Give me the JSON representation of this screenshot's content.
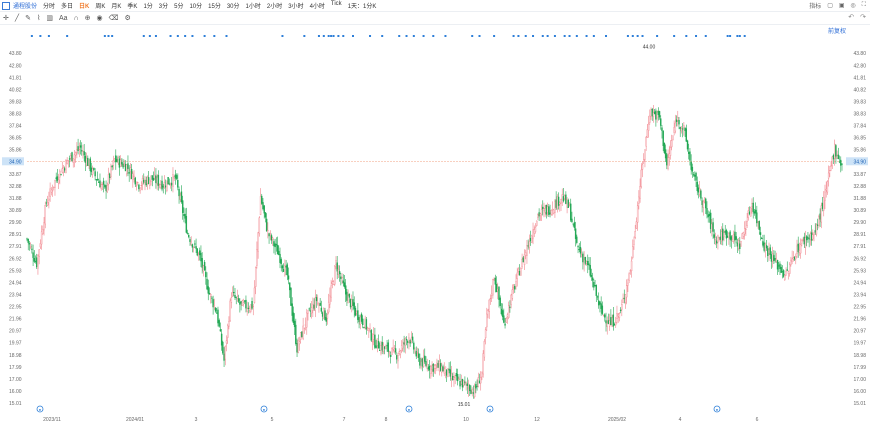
{
  "header": {
    "stock_name": "通程股份",
    "timeframes": [
      "分时",
      "多日",
      "日K",
      "周K",
      "月K",
      "季K",
      "1分",
      "3分",
      "5分",
      "10分",
      "15分",
      "30分",
      "1小时",
      "2小时",
      "3小时",
      "4小时",
      "Tick",
      "1天：1分K"
    ],
    "active_timeframe": "日K",
    "right_label": "指标"
  },
  "fq_label": "前复权",
  "icons": [
    "crosshair-icon",
    "trendline-icon",
    "pen-icon",
    "shape-icon",
    "measure-icon",
    "text-icon",
    "magnet-icon",
    "lock-icon",
    "eye-icon",
    "trash-icon",
    "settings-icon"
  ],
  "chart_data": {
    "type": "candlestick",
    "ylim": [
      15.01,
      44.55
    ],
    "y_ticks": [
      15.01,
      16.0,
      17.0,
      17.99,
      18.98,
      19.97,
      20.97,
      21.96,
      22.95,
      23.94,
      24.94,
      25.93,
      26.92,
      27.91,
      28.91,
      29.9,
      30.89,
      31.88,
      32.88,
      33.87,
      34.9,
      35.86,
      36.85,
      37.84,
      38.83,
      39.83,
      40.82,
      41.81,
      42.8,
      43.8
    ],
    "x_ticks": [
      "2023/11",
      "2024/01",
      "3",
      "5",
      "7",
      "8",
      "10",
      "12",
      "2025/02",
      "4",
      "6"
    ],
    "last_price": 34.9,
    "max_label": 44.0,
    "min_label": 15.01,
    "close_points": [
      [
        0,
        28.5
      ],
      [
        8,
        26.5
      ],
      [
        16,
        31.5
      ],
      [
        24,
        33.5
      ],
      [
        34,
        35.0
      ],
      [
        44,
        36.0
      ],
      [
        54,
        34.0
      ],
      [
        64,
        32.5
      ],
      [
        72,
        35.0
      ],
      [
        82,
        34.5
      ],
      [
        92,
        33.0
      ],
      [
        102,
        33.5
      ],
      [
        112,
        33.0
      ],
      [
        122,
        33.5
      ],
      [
        132,
        29.0
      ],
      [
        142,
        27.0
      ],
      [
        150,
        24.0
      ],
      [
        156,
        22.5
      ],
      [
        162,
        18.5
      ],
      [
        168,
        24.0
      ],
      [
        176,
        23.0
      ],
      [
        186,
        23.0
      ],
      [
        192,
        32.0
      ],
      [
        198,
        29.0
      ],
      [
        206,
        27.5
      ],
      [
        214,
        25.5
      ],
      [
        222,
        19.5
      ],
      [
        230,
        22.0
      ],
      [
        238,
        23.5
      ],
      [
        246,
        22.0
      ],
      [
        254,
        26.5
      ],
      [
        262,
        24.0
      ],
      [
        270,
        22.5
      ],
      [
        278,
        21.5
      ],
      [
        286,
        20.0
      ],
      [
        294,
        19.5
      ],
      [
        304,
        19.0
      ],
      [
        314,
        20.5
      ],
      [
        322,
        18.5
      ],
      [
        332,
        18.0
      ],
      [
        340,
        18.0
      ],
      [
        350,
        17.0
      ],
      [
        360,
        16.5
      ],
      [
        368,
        16.0
      ],
      [
        374,
        17.5
      ],
      [
        378,
        22.0
      ],
      [
        384,
        25.5
      ],
      [
        392,
        21.5
      ],
      [
        402,
        25.0
      ],
      [
        410,
        27.5
      ],
      [
        420,
        30.5
      ],
      [
        430,
        31.0
      ],
      [
        440,
        32.0
      ],
      [
        446,
        31.0
      ],
      [
        452,
        28.0
      ],
      [
        462,
        26.0
      ],
      [
        472,
        22.5
      ],
      [
        480,
        21.5
      ],
      [
        488,
        22.5
      ],
      [
        496,
        26.0
      ],
      [
        504,
        33.0
      ],
      [
        512,
        39.0
      ],
      [
        520,
        38.5
      ],
      [
        526,
        34.5
      ],
      [
        534,
        38.5
      ],
      [
        540,
        37.5
      ],
      [
        548,
        33.5
      ],
      [
        556,
        31.5
      ],
      [
        566,
        28.5
      ],
      [
        576,
        29.0
      ],
      [
        586,
        28.0
      ],
      [
        596,
        31.5
      ],
      [
        606,
        28.0
      ],
      [
        616,
        26.5
      ],
      [
        624,
        25.5
      ],
      [
        632,
        27.5
      ],
      [
        640,
        28.5
      ],
      [
        648,
        29.0
      ],
      [
        656,
        32.0
      ],
      [
        664,
        36.0
      ],
      [
        670,
        34.5
      ]
    ],
    "markers_top": [
      4,
      11,
      18,
      33,
      64,
      67,
      70,
      96,
      101,
      106,
      118,
      124,
      130,
      136,
      146,
      154,
      164,
      210,
      228,
      240,
      244,
      248,
      250,
      252,
      256,
      260,
      268,
      282,
      292,
      306,
      312,
      318,
      326,
      334,
      344,
      366,
      372,
      384,
      400,
      404,
      410,
      416,
      424,
      428,
      434,
      442,
      446,
      452,
      460,
      466,
      476,
      494,
      498,
      502,
      506,
      518,
      532,
      542,
      550,
      558,
      576,
      578,
      584,
      586,
      590
    ],
    "markers_bottom": [
      40,
      264,
      409,
      490,
      717
    ],
    "y_ticks_labels_precision": 2
  }
}
